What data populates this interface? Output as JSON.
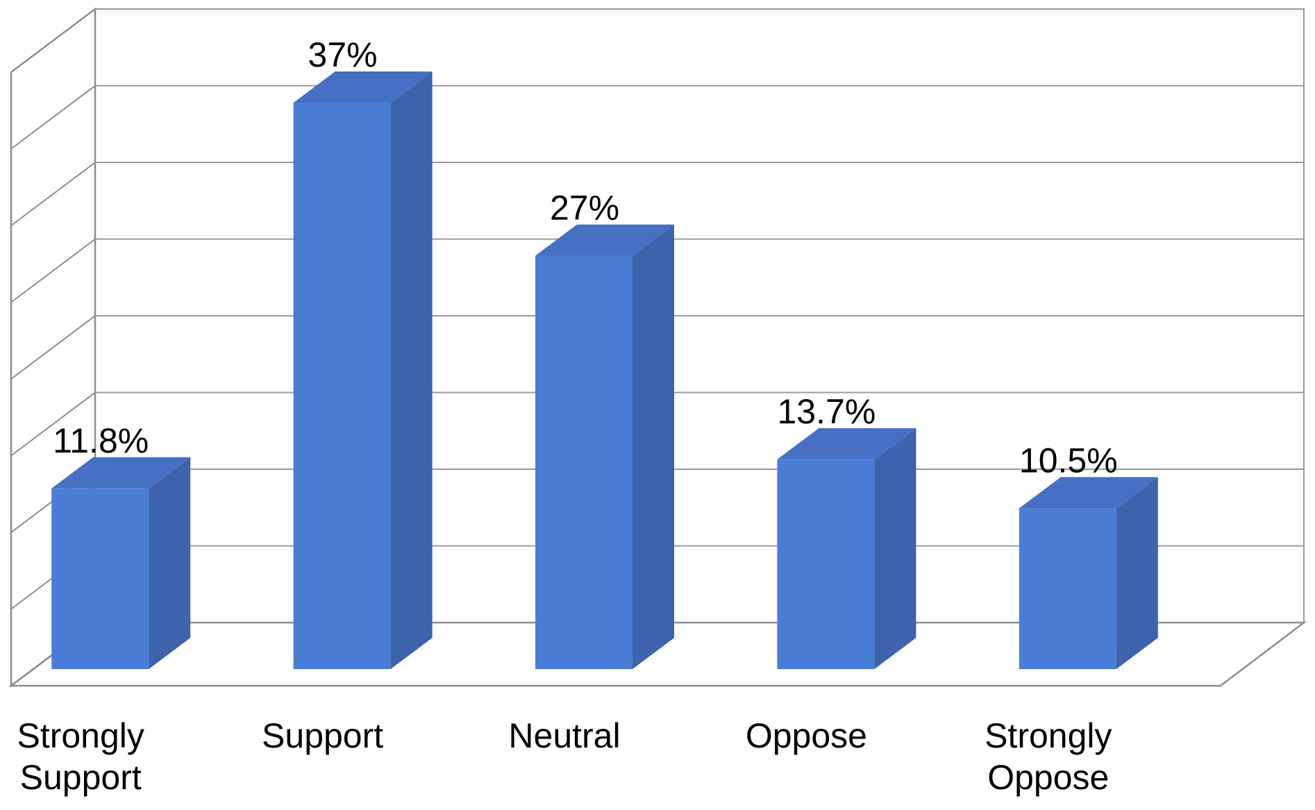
{
  "chart_data": {
    "type": "bar",
    "style": "3d-column",
    "categories": [
      "Strongly Support",
      "Support",
      "Neutral",
      "Oppose",
      "Strongly Oppose"
    ],
    "category_lines": [
      [
        "Strongly",
        "Support"
      ],
      [
        "Support"
      ],
      [
        "Neutral"
      ],
      [
        "Oppose"
      ],
      [
        "Strongly",
        "Oppose"
      ]
    ],
    "values": [
      11.8,
      37,
      27,
      13.7,
      10.5
    ],
    "data_labels": [
      "11.8%",
      "37%",
      "27%",
      "13.7%",
      "10.5%"
    ],
    "title": "",
    "xlabel": "",
    "ylabel": "",
    "ylim": [
      0,
      40
    ],
    "grid": true,
    "gridline_step": 5,
    "legend": "none",
    "colors": {
      "bar_front": "#4a7dd6",
      "bar_top": "#4570c4",
      "bar_side": "#3c63ac",
      "grid": "#999999",
      "axis": "#8c8c8c"
    }
  }
}
